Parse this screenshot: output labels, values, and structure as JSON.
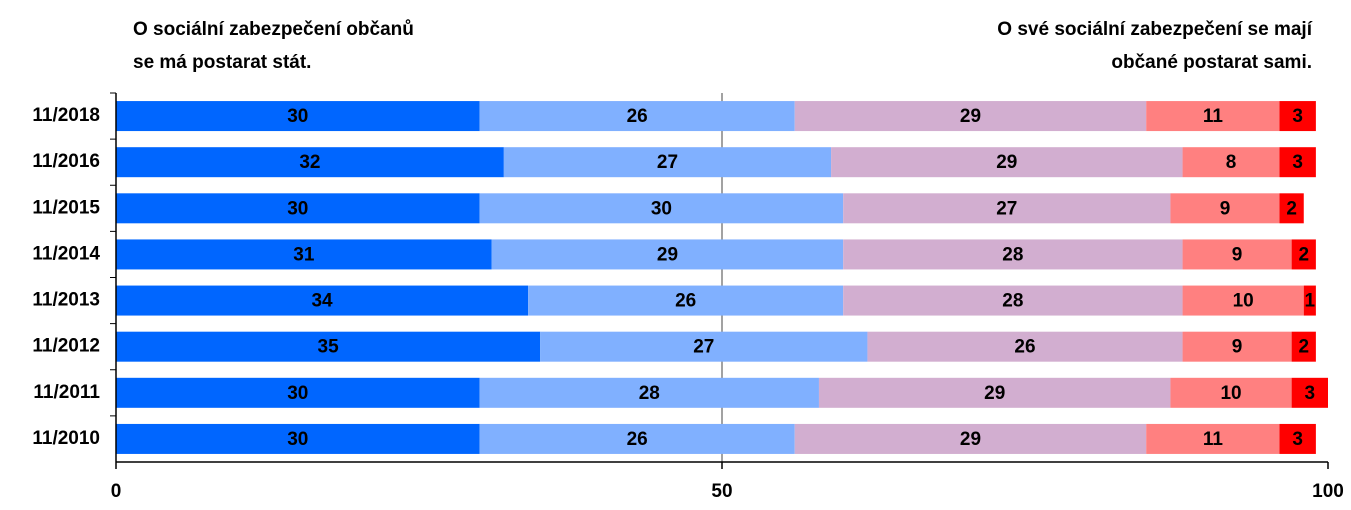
{
  "chart_data": {
    "type": "stacked_hbar",
    "annotations": [
      {
        "lines": [
          "O sociální zabezpečení občanů",
          "se má postarat stát."
        ],
        "align": "left"
      },
      {
        "lines": [
          "O své sociální zabezpečení se mají",
          "občané postarat sami."
        ],
        "align": "right"
      }
    ],
    "categories": [
      "11/2018",
      "11/2016",
      "11/2015",
      "11/2014",
      "11/2013",
      "11/2012",
      "11/2011",
      "11/2010"
    ],
    "series": [
      {
        "color": "#0066ff",
        "values": [
          30,
          32,
          30,
          31,
          34,
          35,
          30,
          30
        ]
      },
      {
        "color": "#80b0ff",
        "values": [
          26,
          27,
          30,
          29,
          26,
          27,
          28,
          26
        ]
      },
      {
        "color": "#d2aed0",
        "values": [
          29,
          29,
          27,
          28,
          28,
          26,
          29,
          29
        ]
      },
      {
        "color": "#ff8080",
        "values": [
          11,
          8,
          9,
          9,
          10,
          9,
          10,
          11
        ]
      },
      {
        "color": "#ff0000",
        "values": [
          3,
          3,
          2,
          2,
          1,
          2,
          3,
          3
        ]
      }
    ],
    "xlim": [
      0,
      100
    ],
    "xticks": [
      0,
      50,
      100
    ],
    "grid": true
  }
}
